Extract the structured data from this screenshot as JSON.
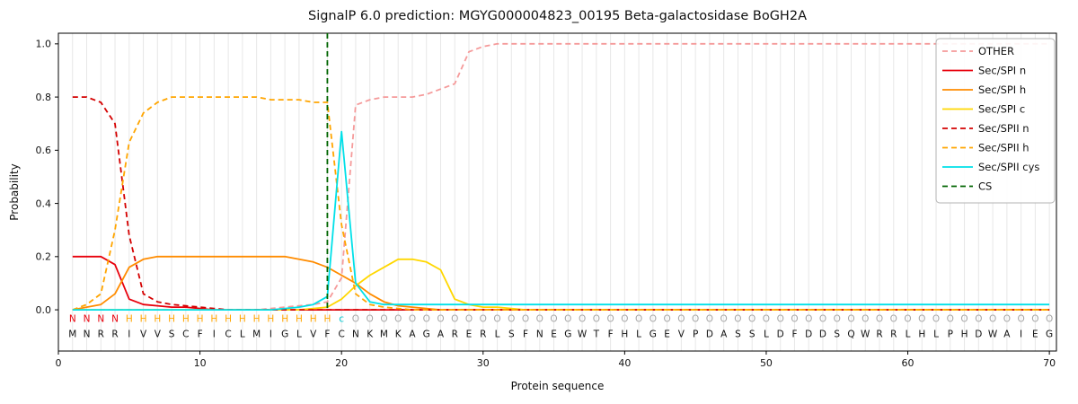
{
  "title": "SignalP 6.0 prediction: MGYG000004823_00195 Beta-galactosidase BoGH2A",
  "chart_data": {
    "type": "line",
    "title": "SignalP 6.0 prediction: MGYG000004823_00195 Beta-galactosidase BoGH2A",
    "xlabel": "Protein sequence",
    "ylabel": "Probability",
    "xlim": [
      0,
      70.5
    ],
    "ylim": [
      -0.155,
      1.04
    ],
    "xticks": [
      0,
      10,
      20,
      30,
      40,
      50,
      60,
      70
    ],
    "yticks": [
      0.0,
      0.2,
      0.4,
      0.6,
      0.8,
      1.0
    ],
    "grid": "vertical-per-residue",
    "grid_color": "#e7e7e7",
    "legend_position": "upper right",
    "cs_position": 19,
    "sequence": "MNRRIVVSCFICLMIGLVFCNKMKAGARERLSFNEGWTFHLGEVPDASSLDFDDSQWRRLHLPHDWAIEG",
    "annotation": "NNNNHHHHHHHHHHHHHHHcOOOOOOOOOOOOOOOOOOOOOOOOOOOOOOOOOOOOOOOOOOOOOOOOOO",
    "annotation_colors": {
      "N": "#e8000b",
      "H": "#ffa500",
      "c": "#00c8d0",
      "O": "#a6a6a6"
    },
    "series": [
      {
        "name": "OTHER",
        "color": "#f59a9a",
        "dash": true,
        "values": [
          0,
          0,
          0,
          0,
          0,
          0,
          0,
          0,
          0,
          0,
          0,
          0,
          0,
          0,
          0.005,
          0.01,
          0.015,
          0.02,
          0.03,
          0.12,
          0.77,
          0.79,
          0.8,
          0.8,
          0.8,
          0.81,
          0.83,
          0.85,
          0.97,
          0.99,
          1,
          1,
          1,
          1,
          1,
          1,
          1,
          1,
          1,
          1,
          1,
          1,
          1,
          1,
          1,
          1,
          1,
          1,
          1,
          1,
          1,
          1,
          1,
          1,
          1,
          1,
          1,
          1,
          1,
          1,
          1,
          1,
          1,
          1,
          1,
          1,
          1,
          1,
          1,
          1
        ]
      },
      {
        "name": "Sec/SPI n",
        "color": "#e8000b",
        "dash": false,
        "values": [
          0.2,
          0.2,
          0.2,
          0.17,
          0.04,
          0.02,
          0.015,
          0.01,
          0.01,
          0.005,
          0,
          0,
          0,
          0,
          0,
          0,
          0,
          0,
          0,
          0,
          0,
          0,
          0,
          0,
          0,
          0,
          0,
          0,
          0,
          0,
          0,
          0,
          0,
          0,
          0,
          0,
          0,
          0,
          0,
          0,
          0,
          0,
          0,
          0,
          0,
          0,
          0,
          0,
          0,
          0,
          0,
          0,
          0,
          0,
          0,
          0,
          0,
          0,
          0,
          0,
          0,
          0,
          0,
          0,
          0,
          0,
          0,
          0,
          0,
          0
        ]
      },
      {
        "name": "Sec/SPI h",
        "color": "#ff8c00",
        "dash": false,
        "values": [
          0,
          0.01,
          0.02,
          0.06,
          0.16,
          0.19,
          0.2,
          0.2,
          0.2,
          0.2,
          0.2,
          0.2,
          0.2,
          0.2,
          0.2,
          0.2,
          0.19,
          0.18,
          0.16,
          0.13,
          0.1,
          0.06,
          0.03,
          0.015,
          0.01,
          0.005,
          0,
          0,
          0,
          0,
          0,
          0,
          0,
          0,
          0,
          0,
          0,
          0,
          0,
          0,
          0,
          0,
          0,
          0,
          0,
          0,
          0,
          0,
          0,
          0,
          0,
          0,
          0,
          0,
          0,
          0,
          0,
          0,
          0,
          0,
          0,
          0,
          0,
          0,
          0,
          0,
          0,
          0,
          0,
          0
        ]
      },
      {
        "name": "Sec/SPI c",
        "color": "#ffd700",
        "dash": false,
        "values": [
          0,
          0,
          0,
          0,
          0,
          0,
          0,
          0,
          0,
          0,
          0,
          0,
          0,
          0,
          0,
          0,
          0,
          0.005,
          0.01,
          0.04,
          0.09,
          0.13,
          0.16,
          0.19,
          0.19,
          0.18,
          0.15,
          0.04,
          0.02,
          0.01,
          0.01,
          0.005,
          0,
          0,
          0,
          0,
          0,
          0,
          0,
          0,
          0,
          0,
          0,
          0,
          0,
          0,
          0,
          0,
          0,
          0,
          0,
          0,
          0,
          0,
          0,
          0,
          0,
          0,
          0,
          0,
          0,
          0,
          0,
          0,
          0,
          0,
          0,
          0,
          0,
          0
        ]
      },
      {
        "name": "Sec/SPII n",
        "color": "#d40000",
        "dash": true,
        "values": [
          0.8,
          0.8,
          0.78,
          0.7,
          0.28,
          0.06,
          0.03,
          0.02,
          0.015,
          0.01,
          0.005,
          0,
          0,
          0,
          0,
          0,
          0,
          0,
          0,
          0,
          0,
          0,
          0,
          0,
          0,
          0,
          0,
          0,
          0,
          0,
          0,
          0,
          0,
          0,
          0,
          0,
          0,
          0,
          0,
          0,
          0,
          0,
          0,
          0,
          0,
          0,
          0,
          0,
          0,
          0,
          0,
          0,
          0,
          0,
          0,
          0,
          0,
          0,
          0,
          0,
          0,
          0,
          0,
          0,
          0,
          0,
          0,
          0,
          0,
          0
        ]
      },
      {
        "name": "Sec/SPII h",
        "color": "#ffa500",
        "dash": true,
        "values": [
          0,
          0.02,
          0.06,
          0.3,
          0.63,
          0.74,
          0.78,
          0.8,
          0.8,
          0.8,
          0.8,
          0.8,
          0.8,
          0.8,
          0.79,
          0.79,
          0.79,
          0.78,
          0.78,
          0.32,
          0.06,
          0.02,
          0.01,
          0.005,
          0,
          0,
          0,
          0,
          0,
          0,
          0,
          0,
          0,
          0,
          0,
          0,
          0,
          0,
          0,
          0,
          0,
          0,
          0,
          0,
          0,
          0,
          0,
          0,
          0,
          0,
          0,
          0,
          0,
          0,
          0,
          0,
          0,
          0,
          0,
          0,
          0,
          0,
          0,
          0,
          0,
          0,
          0,
          0,
          0,
          0
        ]
      },
      {
        "name": "Sec/SPII cys",
        "color": "#00e0e8",
        "dash": false,
        "values": [
          0,
          0,
          0,
          0,
          0,
          0,
          0,
          0,
          0,
          0,
          0,
          0,
          0,
          0,
          0,
          0.005,
          0.01,
          0.02,
          0.05,
          0.67,
          0.1,
          0.03,
          0.02,
          0.02,
          0.02,
          0.02,
          0.02,
          0.02,
          0.02,
          0.02,
          0.02,
          0.02,
          0.02,
          0.02,
          0.02,
          0.02,
          0.02,
          0.02,
          0.02,
          0.02,
          0.02,
          0.02,
          0.02,
          0.02,
          0.02,
          0.02,
          0.02,
          0.02,
          0.02,
          0.02,
          0.02,
          0.02,
          0.02,
          0.02,
          0.02,
          0.02,
          0.02,
          0.02,
          0.02,
          0.02,
          0.02,
          0.02,
          0.02,
          0.02,
          0.02,
          0.02,
          0.02,
          0.02,
          0.02,
          0.02
        ]
      },
      {
        "name": "CS",
        "color": "#006400",
        "dash": true,
        "vline": 19
      }
    ]
  }
}
